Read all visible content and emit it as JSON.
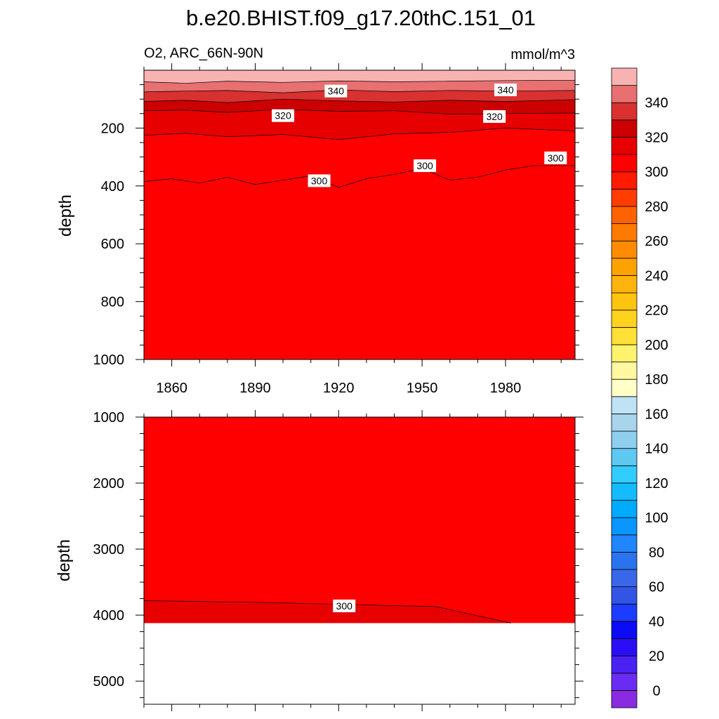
{
  "figure": {
    "title": "b.e20.BHIST.f09_g17.20thC.151_01",
    "variable_region": "O2, ARC_66N-90N",
    "units": "mmol/m^3"
  },
  "chart_data": [
    {
      "type": "contour",
      "panel": "upper",
      "title": "b.e20.BHIST.f09_g17.20thC.151_01",
      "subtitle_left": "O2, ARC_66N-90N",
      "subtitle_right": "mmol/m^3",
      "ylabel": "depth",
      "xlabel": "",
      "xlim": [
        1850,
        2005
      ],
      "ylim": [
        1000,
        0
      ],
      "x_ticks": [
        1860,
        1890,
        1920,
        1950,
        1980
      ],
      "y_ticks": [
        200,
        400,
        600,
        800,
        1000
      ],
      "background_level": "300-310",
      "contours": [
        {
          "level": 350,
          "x": [
            1850,
            1865,
            1880,
            1900,
            1920,
            1940,
            1960,
            1980,
            2005
          ],
          "y": [
            40,
            45,
            38,
            42,
            37,
            40,
            38,
            36,
            35
          ]
        },
        {
          "level": 340,
          "x": [
            1850,
            1865,
            1880,
            1900,
            1920,
            1940,
            1960,
            1980,
            2005
          ],
          "y": [
            75,
            72,
            70,
            78,
            68,
            74,
            70,
            72,
            70
          ]
        },
        {
          "level": 330,
          "x": [
            1850,
            1865,
            1880,
            1900,
            1920,
            1940,
            1960,
            1980,
            2005
          ],
          "y": [
            108,
            104,
            112,
            100,
            106,
            110,
            104,
            108,
            102
          ]
        },
        {
          "level": 320,
          "x": [
            1850,
            1865,
            1880,
            1900,
            1920,
            1940,
            1960,
            1980,
            2005
          ],
          "y": [
            140,
            138,
            146,
            135,
            142,
            140,
            152,
            150,
            148
          ]
        },
        {
          "level": 310,
          "x": [
            1850,
            1865,
            1880,
            1900,
            1920,
            1940,
            1960,
            1980,
            2005
          ],
          "y": [
            225,
            218,
            230,
            222,
            240,
            220,
            215,
            200,
            210
          ]
        },
        {
          "level": 300,
          "x": [
            1850,
            1860,
            1870,
            1880,
            1890,
            1900,
            1910,
            1920,
            1930,
            1940,
            1950,
            1960,
            1970,
            1980,
            1990,
            2005
          ],
          "y": [
            385,
            375,
            390,
            370,
            395,
            380,
            365,
            405,
            375,
            360,
            340,
            380,
            370,
            345,
            330,
            330
          ]
        }
      ],
      "contour_labels": [
        {
          "text": "340",
          "x": 1919,
          "y": 72
        },
        {
          "text": "340",
          "x": 1980,
          "y": 68
        },
        {
          "text": "320",
          "x": 1900,
          "y": 157
        },
        {
          "text": "320",
          "x": 1976,
          "y": 160
        },
        {
          "text": "300",
          "x": 1913,
          "y": 382
        },
        {
          "text": "300",
          "x": 1951,
          "y": 330
        },
        {
          "text": "300",
          "x": 1998,
          "y": 303
        }
      ]
    },
    {
      "type": "contour",
      "panel": "lower",
      "ylabel": "depth",
      "xlim": [
        1850,
        2005
      ],
      "ylim": [
        5350,
        1000
      ],
      "x_ticks": [
        1860,
        1890,
        1920,
        1950,
        1980
      ],
      "y_ticks": [
        1000,
        2000,
        3000,
        4000,
        5000
      ],
      "background_level": "300-310",
      "data_bottom_depth": 4120,
      "contours": [
        {
          "level": 300,
          "x": [
            1850,
            1895,
            1955,
            1982
          ],
          "y": [
            3780,
            3810,
            3870,
            4120
          ]
        }
      ],
      "contour_labels": [
        {
          "text": "300",
          "x": 1922,
          "y": 3860
        }
      ]
    }
  ],
  "colorbar": {
    "levels": [
      0,
      10,
      20,
      30,
      40,
      50,
      60,
      70,
      80,
      90,
      100,
      110,
      120,
      130,
      140,
      150,
      160,
      170,
      180,
      190,
      200,
      210,
      220,
      230,
      240,
      250,
      260,
      270,
      280,
      290,
      300,
      310,
      320,
      330,
      340,
      350
    ],
    "colors": [
      "#8a2be2",
      "#6a2cf2",
      "#4a22f4",
      "#2a0ff5",
      "#0b0bf5",
      "#1e3cff",
      "#3355e6",
      "#3a66e8",
      "#2a73ee",
      "#1f86ff",
      "#0a96ff",
      "#00aaff",
      "#14bbff",
      "#33ccff",
      "#5ec8f2",
      "#8ecfee",
      "#a8d4ec",
      "#bfe3f5",
      "#ffffc8",
      "#fff8a0",
      "#fff36e",
      "#ffe135",
      "#ffd21e",
      "#ffc410",
      "#ffb30c",
      "#ffa200",
      "#ff8c00",
      "#ff7a00",
      "#ff6200",
      "#ff3d00",
      "#ff1a00",
      "#ff0000",
      "#e60000",
      "#cc0000",
      "#d93030",
      "#e87070",
      "#f9b2b2"
    ],
    "labels": [
      "0",
      "20",
      "40",
      "60",
      "80",
      "100",
      "120",
      "140",
      "160",
      "180",
      "200",
      "220",
      "240",
      "260",
      "280",
      "300",
      "320",
      "340"
    ]
  }
}
